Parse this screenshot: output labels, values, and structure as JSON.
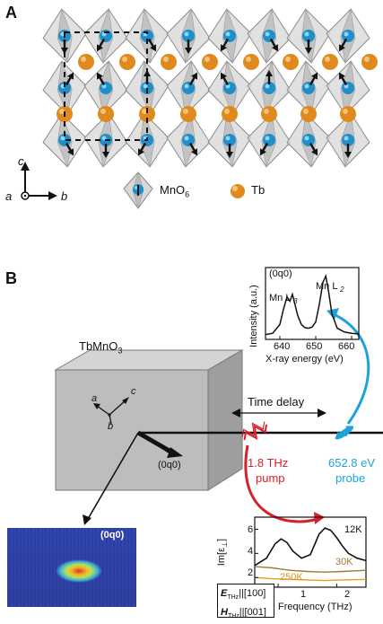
{
  "panelA": {
    "letter": "A",
    "axes": {
      "c": "c",
      "a": "a",
      "b": "b"
    },
    "legend": {
      "mno6": "MnO",
      "mno6_sub": "6",
      "tb": "Tb"
    },
    "colors": {
      "mn": "#1e8fc8",
      "tb": "#e08a1e",
      "octahedron": "#c8c8c8"
    }
  },
  "panelB": {
    "letter": "B",
    "crystal_label": "TbMnO",
    "crystal_label_sub": "3",
    "crystal_axes": {
      "a": "a",
      "b": "b",
      "c": "c"
    },
    "reflection": "(0q0)",
    "time_delay": "Time delay",
    "pump": {
      "freq": "1.8 THz",
      "word": "pump",
      "color": "#d6202a"
    },
    "probe": {
      "energy": "652.8 eV",
      "word": "probe",
      "color": "#1ea2dc"
    },
    "detector_label": "(0q0)"
  },
  "xas_inset": {
    "title": "(0q0)",
    "peak1": "Mn L",
    "peak1_sub": "3",
    "peak2": "Mn L",
    "peak2_sub": "2",
    "ylabel": "Intensity (a.u.)",
    "xlabel": "X-ray energy (eV)",
    "xticks": [
      "640",
      "650",
      "660"
    ]
  },
  "thz_inset": {
    "ylabel": "Im[ε",
    "ylabel_sub": "⊥",
    "ylabel_end": "]",
    "xlabel": "Frequency (THz)",
    "yticks": [
      "2",
      "4",
      "6"
    ],
    "xticks": [
      "1",
      "2"
    ],
    "series_labels": [
      "12K",
      "30K",
      "250K"
    ],
    "polarization": {
      "e": "E",
      "e_sub": "THz",
      "e_val": "||[100]",
      "h": "H",
      "h_sub": "THz",
      "h_val": "||[001]"
    }
  },
  "chart_data": [
    {
      "type": "line",
      "xlabel": "X-ray energy (eV)",
      "ylabel": "Intensity (a.u.)",
      "xlim": [
        636,
        662
      ],
      "series": [
        {
          "name": "(0q0)",
          "x": [
            636,
            638,
            640,
            641,
            642,
            642.8,
            643.5,
            644.2,
            645,
            646,
            647,
            648,
            649,
            650,
            651,
            652,
            652.8,
            653.6,
            654.5,
            656,
            658,
            660,
            662
          ],
          "y": [
            0.02,
            0.04,
            0.18,
            0.42,
            0.62,
            0.55,
            0.66,
            0.5,
            0.32,
            0.18,
            0.13,
            0.12,
            0.14,
            0.22,
            0.5,
            0.85,
            0.95,
            0.7,
            0.35,
            0.12,
            0.06,
            0.04,
            0.03
          ]
        }
      ]
    },
    {
      "type": "line",
      "xlabel": "Frequency (THz)",
      "ylabel": "Im[ε⊥]",
      "xlim": [
        0.6,
        2.5
      ],
      "ylim": [
        1.2,
        7
      ],
      "series": [
        {
          "name": "12K",
          "color": "#111111",
          "x": [
            0.6,
            0.8,
            0.95,
            1.05,
            1.15,
            1.25,
            1.4,
            1.55,
            1.7,
            1.8,
            1.9,
            2.0,
            2.1,
            2.2,
            2.35,
            2.5
          ],
          "y": [
            3.0,
            3.6,
            4.8,
            5.2,
            4.9,
            4.2,
            3.6,
            3.9,
            5.6,
            6.1,
            5.9,
            5.3,
            4.6,
            4.0,
            3.6,
            3.4
          ]
        },
        {
          "name": "30K",
          "color": "#a07a3a",
          "x": [
            0.6,
            0.9,
            1.2,
            1.5,
            1.8,
            2.1,
            2.5
          ],
          "y": [
            2.9,
            2.8,
            2.6,
            2.5,
            2.45,
            2.5,
            2.6
          ]
        },
        {
          "name": "250K",
          "color": "#e0a020",
          "x": [
            0.6,
            0.9,
            1.2,
            1.5,
            1.8,
            2.1,
            2.5
          ],
          "y": [
            2.0,
            1.9,
            1.85,
            1.8,
            1.75,
            1.8,
            1.85
          ]
        }
      ]
    }
  ]
}
